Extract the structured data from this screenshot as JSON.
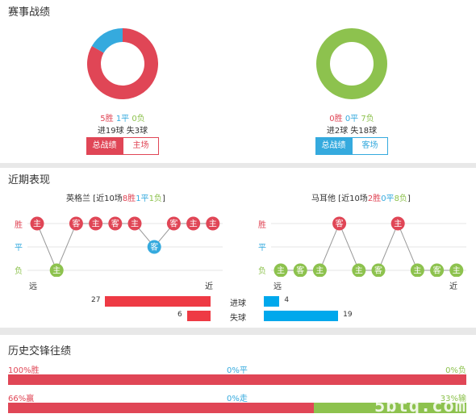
{
  "colors": {
    "win": "#e04656",
    "draw": "#35aade",
    "loss": "#8dc24e",
    "goals_bar": "#ee3a44",
    "lost_bar": "#00a8ec"
  },
  "record": {
    "title": "赛事战绩",
    "home": {
      "wins": 5,
      "draws": 1,
      "losses": 0,
      "win_text": "5胜",
      "draw_text": "1平",
      "loss_text": "0负",
      "goals_line": "进19球 失3球",
      "btn_total": "总战绩",
      "btn_venue": "主场"
    },
    "away": {
      "wins": 0,
      "draws": 0,
      "losses": 7,
      "win_text": "0胜",
      "draw_text": "0平",
      "loss_text": "7负",
      "goals_line": "进2球 失18球",
      "btn_total": "总战绩",
      "btn_venue": "客场"
    }
  },
  "recent": {
    "title": "近期表现",
    "axis": {
      "win": "胜",
      "draw": "平",
      "loss": "负",
      "far": "远",
      "near": "近"
    },
    "home": {
      "team": "英格兰",
      "summary_pre": " [近10场",
      "w": "8胜",
      "d": "1平",
      "l": "1负",
      "summary_post": "]",
      "matches": [
        {
          "r": "W",
          "v": "主"
        },
        {
          "r": "L",
          "v": "主"
        },
        {
          "r": "W",
          "v": "客"
        },
        {
          "r": "W",
          "v": "主"
        },
        {
          "r": "W",
          "v": "客"
        },
        {
          "r": "W",
          "v": "主"
        },
        {
          "r": "D",
          "v": "客"
        },
        {
          "r": "W",
          "v": "客"
        },
        {
          "r": "W",
          "v": "主"
        },
        {
          "r": "W",
          "v": "主"
        }
      ]
    },
    "away": {
      "team": "马耳他",
      "summary_pre": " [近10场",
      "w": "2胜",
      "d": "0平",
      "l": "8负",
      "summary_post": "]",
      "matches": [
        {
          "r": "L",
          "v": "主"
        },
        {
          "r": "L",
          "v": "客"
        },
        {
          "r": "L",
          "v": "主"
        },
        {
          "r": "W",
          "v": "客"
        },
        {
          "r": "L",
          "v": "主"
        },
        {
          "r": "L",
          "v": "客"
        },
        {
          "r": "W",
          "v": "主"
        },
        {
          "r": "L",
          "v": "主"
        },
        {
          "r": "L",
          "v": "客"
        },
        {
          "r": "L",
          "v": "主"
        }
      ]
    },
    "goals": {
      "scored_label": "进球",
      "conceded_label": "失球",
      "home_scored": 27,
      "home_conceded": 6,
      "away_scored": 4,
      "away_conceded": 19
    }
  },
  "history": {
    "title": "历史交锋往绩",
    "row1": {
      "left": "100%胜",
      "mid": "0%平",
      "right": "0%负",
      "win_pct": 100,
      "draw_pct": 0,
      "loss_pct": 0
    },
    "row2": {
      "left": "66%赢",
      "mid": "0%走",
      "right": "33%输",
      "win_pct": 66,
      "draw_pct": 0,
      "loss_pct": 33
    }
  },
  "watermark": "5btq.com"
}
